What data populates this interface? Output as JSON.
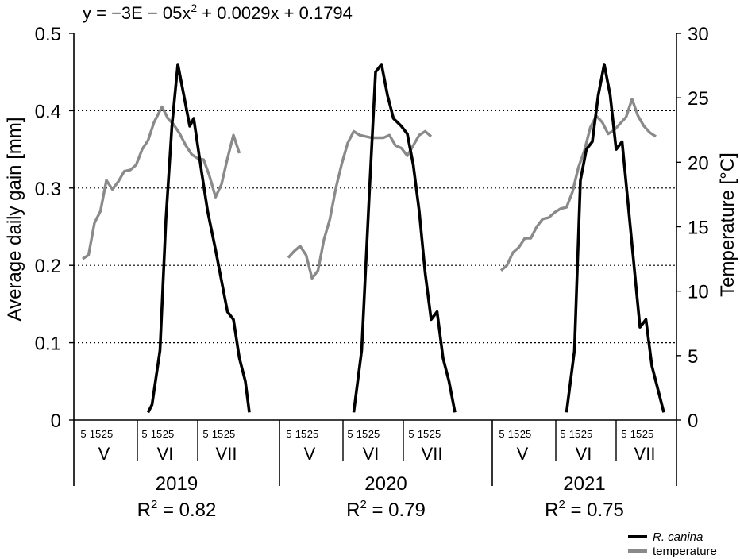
{
  "chart_data": {
    "type": "line",
    "equation": "y = −3E − 05x² + 0.0029x + 0.1794",
    "equation_parts": [
      "y = −3E − 05x",
      "2",
      " + 0.0029x + 0.1794"
    ],
    "ylabel_left": "Average daily gain [mm]",
    "ylabel_right": "Temperature [°C]",
    "ylim_left": [
      0,
      0.5
    ],
    "ylim_right": [
      0,
      30
    ],
    "yticks_left": [
      "0",
      "0.1",
      "0.2",
      "0.3",
      "0.4",
      "0.5"
    ],
    "yticks_right": [
      "0",
      "5",
      "10",
      "15",
      "20",
      "25",
      "30"
    ],
    "grid": "dotted horizontal lines at 0.1, 0.2, 0.3, 0.4",
    "day_ticks": [
      "5",
      "15",
      "25"
    ],
    "months": [
      "V",
      "VI",
      "VII"
    ],
    "legend_position": "bottom-right",
    "series": [
      {
        "name": "R. canina",
        "axis": "left",
        "color": "#000000"
      },
      {
        "name": "temperature",
        "axis": "right",
        "color": "#8a8a8a"
      }
    ],
    "years": [
      {
        "year": "2019",
        "r2_base": "R",
        "r2_sup": "2",
        "r2_value": " = 0.82",
        "canina": [
          [
            5,
            0.01
          ],
          [
            7,
            0.02
          ],
          [
            11,
            0.09
          ],
          [
            14,
            0.26
          ],
          [
            17,
            0.38
          ],
          [
            20,
            0.46
          ],
          [
            23,
            0.42
          ],
          [
            26,
            0.38
          ],
          [
            28,
            0.39
          ],
          [
            32,
            0.32
          ],
          [
            35,
            0.27
          ],
          [
            39,
            0.22
          ],
          [
            42,
            0.18
          ],
          [
            45,
            0.14
          ],
          [
            48,
            0.13
          ],
          [
            51,
            0.08
          ],
          [
            54,
            0.05
          ],
          [
            56,
            0.01
          ]
        ],
        "temperature": [
          [
            -28,
            12.5
          ],
          [
            -25,
            12.8
          ],
          [
            -22,
            15.3
          ],
          [
            -19,
            16.2
          ],
          [
            -16,
            18.6
          ],
          [
            -13,
            17.9
          ],
          [
            -10,
            18.5
          ],
          [
            -7,
            19.3
          ],
          [
            -4,
            19.4
          ],
          [
            -1,
            19.8
          ],
          [
            2,
            21.0
          ],
          [
            5,
            21.7
          ],
          [
            8,
            23.1
          ],
          [
            12,
            24.3
          ],
          [
            15,
            23.4
          ],
          [
            18,
            22.9
          ],
          [
            21,
            22.2
          ],
          [
            24,
            21.3
          ],
          [
            27,
            20.6
          ],
          [
            30,
            20.3
          ],
          [
            33,
            20.2
          ],
          [
            36,
            18.9
          ],
          [
            39,
            17.3
          ],
          [
            42,
            18.3
          ],
          [
            45,
            20.3
          ],
          [
            48,
            22.1
          ],
          [
            51,
            20.7
          ]
        ]
      },
      {
        "year": "2020",
        "r2_base": "R",
        "r2_sup": "2",
        "r2_value": " = 0.79",
        "canina": [
          [
            5,
            0.01
          ],
          [
            9,
            0.09
          ],
          [
            13,
            0.3
          ],
          [
            16,
            0.45
          ],
          [
            19,
            0.46
          ],
          [
            22,
            0.42
          ],
          [
            25,
            0.39
          ],
          [
            29,
            0.38
          ],
          [
            32,
            0.37
          ],
          [
            35,
            0.33
          ],
          [
            38,
            0.27
          ],
          [
            41,
            0.19
          ],
          [
            44,
            0.13
          ],
          [
            47,
            0.14
          ],
          [
            50,
            0.08
          ],
          [
            53,
            0.05
          ],
          [
            56,
            0.01
          ]
        ],
        "temperature": [
          [
            -28,
            12.6
          ],
          [
            -25,
            13.1
          ],
          [
            -22,
            13.5
          ],
          [
            -19,
            12.8
          ],
          [
            -16,
            11.0
          ],
          [
            -13,
            11.6
          ],
          [
            -10,
            14.0
          ],
          [
            -7,
            15.6
          ],
          [
            -4,
            18.0
          ],
          [
            -1,
            19.9
          ],
          [
            2,
            21.5
          ],
          [
            5,
            22.4
          ],
          [
            8,
            22.1
          ],
          [
            11,
            22.0
          ],
          [
            14,
            21.9
          ],
          [
            17,
            21.9
          ],
          [
            20,
            21.9
          ],
          [
            23,
            22.1
          ],
          [
            26,
            21.3
          ],
          [
            29,
            21.1
          ],
          [
            32,
            20.5
          ],
          [
            35,
            21.3
          ],
          [
            38,
            22.1
          ],
          [
            41,
            22.4
          ],
          [
            44,
            22.0
          ]
        ]
      },
      {
        "year": "2021",
        "r2_base": "R",
        "r2_sup": "2",
        "r2_value": " = 0.75",
        "canina": [
          [
            5,
            0.01
          ],
          [
            9,
            0.09
          ],
          [
            12,
            0.31
          ],
          [
            15,
            0.35
          ],
          [
            18,
            0.36
          ],
          [
            21,
            0.42
          ],
          [
            24,
            0.46
          ],
          [
            27,
            0.42
          ],
          [
            30,
            0.35
          ],
          [
            33,
            0.36
          ],
          [
            36,
            0.28
          ],
          [
            39,
            0.2
          ],
          [
            42,
            0.12
          ],
          [
            45,
            0.13
          ],
          [
            48,
            0.07
          ],
          [
            51,
            0.04
          ],
          [
            54,
            0.01
          ]
        ],
        "temperature": [
          [
            -28,
            11.6
          ],
          [
            -25,
            12.0
          ],
          [
            -22,
            13.0
          ],
          [
            -19,
            13.4
          ],
          [
            -16,
            14.1
          ],
          [
            -13,
            14.1
          ],
          [
            -10,
            15.0
          ],
          [
            -7,
            15.6
          ],
          [
            -4,
            15.7
          ],
          [
            -1,
            16.1
          ],
          [
            2,
            16.4
          ],
          [
            5,
            16.5
          ],
          [
            8,
            17.7
          ],
          [
            11,
            19.6
          ],
          [
            14,
            20.9
          ],
          [
            17,
            22.7
          ],
          [
            20,
            23.6
          ],
          [
            23,
            23.1
          ],
          [
            26,
            22.2
          ],
          [
            29,
            22.5
          ],
          [
            32,
            23.0
          ],
          [
            35,
            23.5
          ],
          [
            38,
            24.9
          ],
          [
            41,
            23.6
          ],
          [
            44,
            22.8
          ],
          [
            47,
            22.3
          ],
          [
            50,
            22.0
          ]
        ]
      }
    ]
  }
}
